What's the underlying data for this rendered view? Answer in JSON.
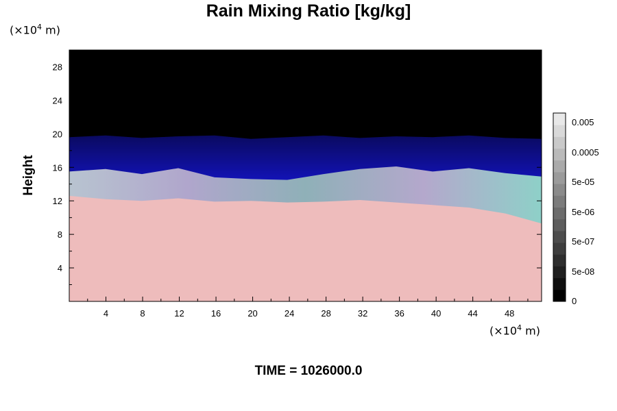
{
  "chart_data": {
    "type": "heatmap",
    "title": "Rain Mixing Ratio [kg/kg]",
    "xlabel": "",
    "ylabel": "Height",
    "x_unit_prefix": "(×10",
    "x_unit_exp": "4",
    "x_unit_suffix": " m)",
    "y_unit_prefix": "(×10",
    "y_unit_exp": "4",
    "y_unit_suffix": " m)",
    "xlim": [
      0,
      51.5
    ],
    "ylim": [
      0,
      30
    ],
    "x_ticks": [
      4,
      8,
      12,
      16,
      20,
      24,
      28,
      32,
      36,
      40,
      44,
      48
    ],
    "y_ticks": [
      4,
      8,
      12,
      16,
      20,
      24,
      28
    ],
    "field_layers": {
      "background_color": "#000000",
      "upper_boundary_height": [
        19.6,
        19.8,
        19.5,
        19.7,
        19.8,
        19.4,
        19.6,
        19.8,
        19.5,
        19.7,
        19.6,
        19.8,
        19.5,
        19.4
      ],
      "blue_band_bottom": [
        15.5,
        15.8,
        15.2,
        15.9,
        14.8,
        14.6,
        14.5,
        15.2,
        15.8,
        16.1,
        15.5,
        15.9,
        15.3,
        14.9
      ],
      "mix_band_bottom": [
        12.6,
        12.2,
        12.0,
        12.3,
        11.9,
        12.0,
        11.8,
        11.9,
        12.1,
        11.8,
        11.5,
        11.2,
        10.5,
        9.3
      ],
      "pink_color": "#eebcbc",
      "blue_color": "#1010d8",
      "mix_color": "#a8b6cc"
    },
    "colorbar": {
      "tick_labels": [
        "0.005",
        "0.0005",
        "5e-05",
        "5e-06",
        "5e-07",
        "5e-08",
        "0"
      ],
      "levels": 16
    }
  },
  "time_label": "TIME = 1026000.0"
}
